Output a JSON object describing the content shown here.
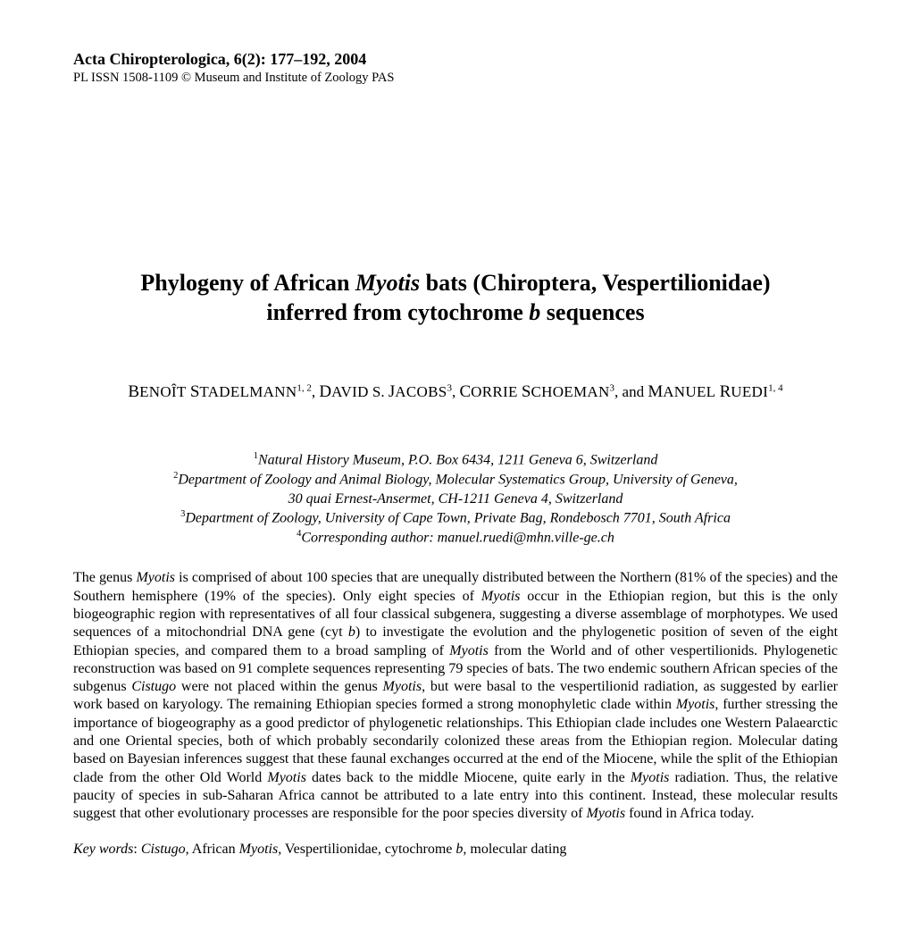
{
  "header": {
    "journal": "Acta Chiropterologica, 6(2): 177–192, 2004",
    "subline": "PL ISSN 1508-1109 © Museum and Institute of Zoology PAS"
  },
  "title": {
    "line1_pre": "Phylogeny of African ",
    "line1_ital1": "Myotis",
    "line1_post": " bats (Chiroptera, Vespertilionidae)",
    "line2_pre": "inferred from cytochrome ",
    "line2_ital": "b",
    "line2_post": " sequences"
  },
  "authors": {
    "a1_first": "B",
    "a1_rest": "ENOÎT",
    "a1_surf": "S",
    "a1_surr": "TADELMANN",
    "a1_sup": "1, 2",
    "a2_first": "D",
    "a2_rest": "AVID",
    "a2_mid": " S. ",
    "a2_surf": "J",
    "a2_surr": "ACOBS",
    "a2_sup": "3",
    "a3_first": "C",
    "a3_rest": "ORRIE",
    "a3_surf": "S",
    "a3_surr": "CHOEMAN",
    "a3_sup": "3",
    "and": ", and ",
    "a4_first": "M",
    "a4_rest": "ANUEL",
    "a4_surf": "R",
    "a4_surr": "UEDI",
    "a4_sup": "1, 4",
    "sep": ", "
  },
  "affiliations": {
    "l1_sup": "1",
    "l1": "Natural History Museum, P.O. Box 6434, 1211 Geneva 6, Switzerland",
    "l2_sup": "2",
    "l2": "Department of Zoology and Animal Biology, Molecular Systematics Group, University of Geneva,",
    "l3": "30 quai Ernest-Ansermet, CH-1211 Geneva 4, Switzerland",
    "l4_sup": "3",
    "l4": "Department of Zoology, University of Cape Town, Private Bag, Rondebosch 7701, South Africa",
    "l5_sup": "4",
    "l5": "Corresponding author: manuel.ruedi@mhn.ville-ge.ch"
  },
  "abstract": {
    "p1a": "The genus ",
    "p1_ital1": "Myotis",
    "p1b": " is comprised of about 100 species that are unequally distributed between the Northern (81% of the species) and the Southern hemisphere (19% of the species). Only eight species of ",
    "p1_ital2": "Myotis",
    "p1c": " occur in the Ethiopian region, but this is the only biogeographic region with representatives of all four classical subgenera, suggesting a diverse assemblage of morphotypes. We used sequences of a mitochondrial DNA gene (cyt ",
    "p1_ital3": "b",
    "p1d": ") to investigate the evolution and the phylogenetic position of seven of the eight Ethiopian species, and compared them to a broad sampling of ",
    "p1_ital4": "Myotis",
    "p1e": " from the World and of other vespertilionids. Phylogenetic reconstruction was based on 91 complete sequences representing 79 species of bats. The two endemic southern African species of the subgenus ",
    "p1_ital5": "Cistugo",
    "p1f": " were not placed within the genus ",
    "p1_ital6": "Myotis",
    "p1g": ", but were basal to the vespertilionid radiation, as suggested by earlier work based on karyology. The remaining Ethiopian species formed a strong mono­phyletic clade within ",
    "p1_ital7": "Myotis",
    "p1h": ", further stressing the importance of biogeography as a good predictor of phyloge­netic relationships. This Ethiopian clade includes one Western Palaearctic and one Oriental species, both of which probably secondarily colonized these areas from the Ethiopian region. Molecular dating based on Bayesian inferences suggest that these faunal exchanges occurred at the end of the Miocene, while the split of the Ethiopian clade from the other Old World ",
    "p1_ital8": "Myotis",
    "p1i": " dates back to the middle Miocene, quite early in the ",
    "p1_ital9": "Myotis",
    "p1j": " radiation. Thus, the relative paucity of species in sub-Saharan Africa cannot be attributed to a late entry into this continent. Instead, these molecular results suggest that other evolutionary processes are responsible for the poor species diversity of ",
    "p1_ital10": "Myotis",
    "p1k": " found in Africa today."
  },
  "keywords": {
    "label": "Key words",
    "colon": ": ",
    "k1": "Cistugo",
    "sep1": ", African ",
    "k2": "Myotis",
    "sep2": ", Vespertilionidae, cytochrome ",
    "k3": "b",
    "rest": ", molecular dating"
  }
}
